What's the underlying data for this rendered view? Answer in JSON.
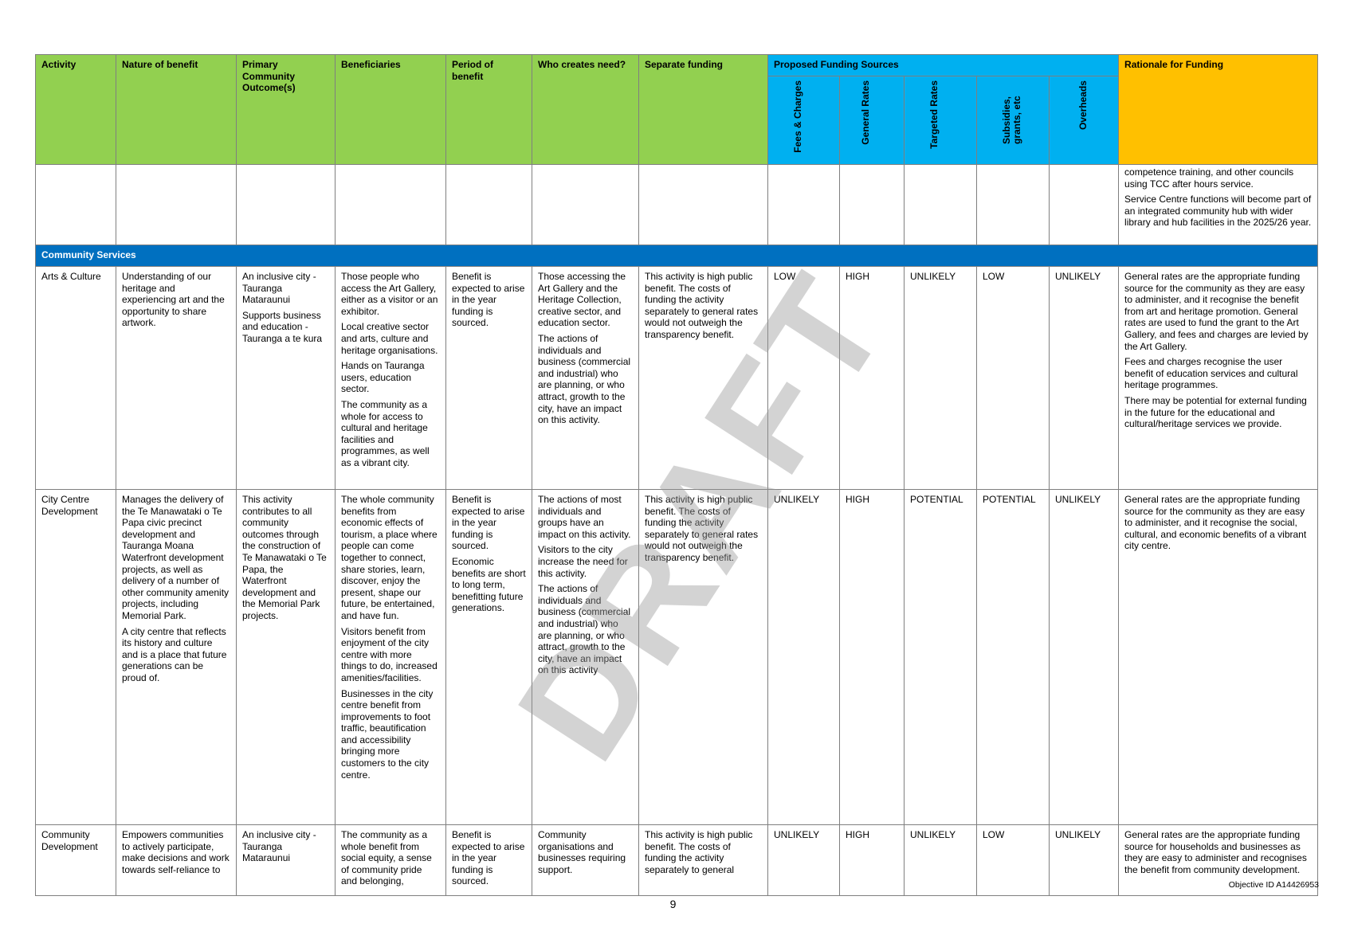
{
  "header": {
    "activity": "Activity",
    "nature": "Nature of benefit",
    "outcomes": "Primary Community Outcome(s)",
    "beneficiaries": "Beneficiaries",
    "period": "Period of benefit",
    "who": "Who creates need?",
    "separate": "Separate funding",
    "sources_title": "Proposed Funding Sources",
    "sources": [
      "Fees & Charges",
      "General Rates",
      "Targeted Rates",
      "Subsidies, grants, etc",
      "Overheads"
    ],
    "rationale": "Rationale for Funding"
  },
  "continued": {
    "rationale": [
      "competence training, and other councils using TCC after hours service.",
      "Service Centre functions will become part of an integrated community hub with wider library and hub facilities in the 2025/26 year."
    ]
  },
  "section_title": "Community Services",
  "rows": [
    {
      "activity": "Arts & Culture",
      "nature": [
        "Understanding of our heritage and experiencing art and the opportunity to share artwork."
      ],
      "outcomes": [
        "An inclusive city - Tauranga Mataraunui",
        "Supports business and education - Tauranga a te kura"
      ],
      "beneficiaries": [
        "Those people who access the Art Gallery, either as a visitor or an exhibitor.",
        "Local creative sector and arts, culture and heritage organisations.",
        "Hands on Tauranga users, education sector.",
        "The community as a whole for access to cultural and heritage facilities and programmes, as well as a vibrant city."
      ],
      "period": [
        "Benefit is expected to arise in the year funding is sourced."
      ],
      "who": [
        "Those accessing the Art Gallery and the Heritage Collection, creative sector, and education sector.",
        "The actions of individuals and business (commercial and industrial) who are planning, or who attract, growth to the city, have an impact on this activity."
      ],
      "separate": [
        "This activity is high public benefit. The costs of funding the activity separately to general rates would not outweigh the transparency benefit."
      ],
      "fees": "LOW",
      "general": "HIGH",
      "targeted": "UNLIKELY",
      "subsidies": "LOW",
      "overheads": "UNLIKELY",
      "rationale": [
        "General rates are the appropriate funding source for the community as they are easy to administer, and it recognise the benefit from art and heritage promotion. General rates are used to fund the grant to the Art Gallery, and fees and charges are levied by the Art Gallery.",
        "Fees and charges recognise the user benefit of education services and cultural heritage programmes.",
        "There may be potential for external funding in the future for the educational and cultural/heritage services we provide."
      ]
    },
    {
      "activity": "City Centre Development",
      "nature": [
        "Manages the delivery of the Te Manawataki o Te Papa civic precinct development and Tauranga Moana Waterfront development projects, as well as delivery of a number of other community amenity projects, including Memorial Park.",
        "A city centre that reflects its history and culture and is a place that future generations can be proud of."
      ],
      "outcomes": [
        "This activity contributes to all community outcomes through the construction of Te Manawataki o Te Papa, the Waterfront development and the Memorial Park projects."
      ],
      "beneficiaries": [
        "The whole community benefits from economic effects of tourism, a place where people can come together to connect, share stories, learn, discover, enjoy the present, shape our future, be entertained, and have fun.",
        "Visitors benefit from enjoyment of the city centre with more things to do, increased amenities/facilities.",
        "Businesses in the city centre benefit from improvements to foot traffic, beautification and accessibility bringing more customers to the city centre."
      ],
      "period": [
        "Benefit is expected to arise in the year funding is sourced.",
        "Economic benefits are short to long term, benefitting future generations."
      ],
      "who": [
        "The actions of most individuals and groups have an impact on this activity.",
        "Visitors to the city increase the need for this activity.",
        "The actions of individuals and business (commercial and industrial) who are planning, or who attract, growth to the city, have an impact on this activity"
      ],
      "separate": [
        "This activity is high public benefit. The costs of funding the activity separately to general rates would not outweigh the transparency benefit."
      ],
      "fees": "UNLIKELY",
      "general": "HIGH",
      "targeted": "POTENTIAL",
      "subsidies": "POTENTIAL",
      "overheads": "UNLIKELY",
      "rationale": [
        "General rates are the appropriate funding source for the community as they are easy to administer, and it recognise the social, cultural, and economic benefits of a vibrant city centre."
      ]
    },
    {
      "activity": "Community Development",
      "nature": [
        "Empowers communities to actively participate, make decisions and work towards self-reliance to"
      ],
      "outcomes": [
        "An inclusive city - Tauranga Mataraunui"
      ],
      "beneficiaries": [
        "The community as a whole benefit from social equity, a sense of community pride and belonging,"
      ],
      "period": [
        "Benefit is expected to arise in the year funding is sourced."
      ],
      "who": [
        "Community organisations and businesses requiring support."
      ],
      "separate": [
        "This activity is high public benefit. The costs of funding the activity separately to general"
      ],
      "fees": "UNLIKELY",
      "general": "HIGH",
      "targeted": "UNLIKELY",
      "subsidies": "LOW",
      "overheads": "UNLIKELY",
      "rationale": [
        "General rates are the appropriate funding source for households and businesses as they are easy to administer and recognises the benefit from community development."
      ]
    }
  ],
  "watermark": "DRAFT",
  "footer": {
    "objective_id": "Objective ID A14426953",
    "page_number": "9"
  }
}
